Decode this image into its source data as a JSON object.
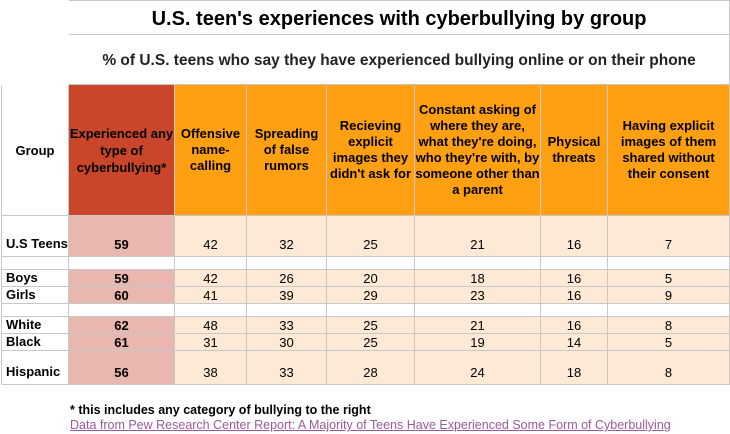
{
  "title": "U.S. teen's experiences with cyberbullying by group",
  "subtitle": "% of U.S. teens who say they have experienced bullying online or on their phone",
  "chart_data": {
    "type": "table",
    "columns": [
      "Group",
      "Experienced any type of cyberbullying*",
      "Offensive name-calling",
      "Spreading of false rumors",
      "Recieving explicit images they didn't ask for",
      "Constant asking of where they are, what they're doing, who they're with, by someone other than a parent",
      "Physical threats",
      "Having explicit images of them shared without their consent"
    ],
    "rows": [
      {
        "group": "U.S Teens",
        "values": [
          59,
          42,
          32,
          25,
          21,
          16,
          7
        ]
      },
      {
        "group": "Boys",
        "values": [
          59,
          42,
          26,
          20,
          18,
          16,
          5
        ]
      },
      {
        "group": "Girls",
        "values": [
          60,
          41,
          39,
          29,
          23,
          16,
          9
        ]
      },
      {
        "group": "White",
        "values": [
          62,
          48,
          33,
          25,
          21,
          16,
          8
        ]
      },
      {
        "group": "Black",
        "values": [
          61,
          31,
          30,
          25,
          19,
          14,
          5
        ]
      },
      {
        "group": "Hispanic",
        "values": [
          56,
          38,
          33,
          28,
          24,
          18,
          8
        ]
      }
    ]
  },
  "colors": {
    "any_header": "#c9462b",
    "category_header": "#ff9f12",
    "any_cells": "#e8b7b0",
    "category_cells": "#fde9d6"
  },
  "footnote": "* this includes any category of bullying to the right",
  "source_link": "Data from Pew Research Center Report: A Majority of Teens Have Experienced Some Form of Cyberbullying"
}
